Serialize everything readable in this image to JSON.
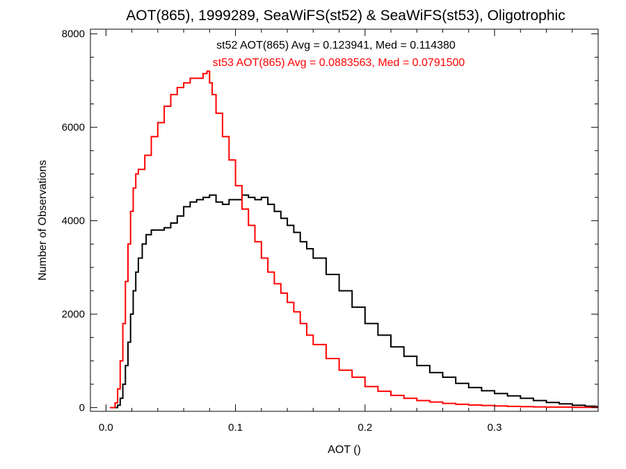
{
  "chart_data": {
    "type": "line",
    "title": "AOT(865), 1999289, SeaWiFS(st52) & SeaWiFS(st53), Oligotrophic",
    "xlabel": "AOT ()",
    "ylabel": "Number of Observations",
    "xlim": [
      -0.012,
      0.38
    ],
    "ylim": [
      -80,
      8100
    ],
    "x_ticks": [
      0.0,
      0.1,
      0.2,
      0.3
    ],
    "x_tick_labels": [
      "0.0",
      "0.1",
      "0.2",
      "0.3"
    ],
    "y_ticks": [
      0,
      2000,
      4000,
      6000,
      8000
    ],
    "y_tick_labels": [
      "0",
      "2000",
      "4000",
      "6000",
      "8000"
    ],
    "grid": false,
    "step": true,
    "annotations": [
      {
        "text": "st52 AOT(865) Avg = 0.123941, Med = 0.114380",
        "color": "#000000"
      },
      {
        "text": "st53 AOT(865) Avg = 0.0883563, Med = 0.0791500",
        "color": "#ff0000"
      }
    ],
    "series": [
      {
        "color": "#000000",
        "x": [
          0.005,
          0.007,
          0.009,
          0.011,
          0.013,
          0.015,
          0.017,
          0.019,
          0.021,
          0.023,
          0.025,
          0.028,
          0.031,
          0.035,
          0.04,
          0.045,
          0.05,
          0.055,
          0.06,
          0.065,
          0.07,
          0.075,
          0.08,
          0.085,
          0.09,
          0.095,
          0.1,
          0.105,
          0.11,
          0.115,
          0.12,
          0.125,
          0.13,
          0.135,
          0.14,
          0.145,
          0.15,
          0.155,
          0.16,
          0.17,
          0.18,
          0.19,
          0.2,
          0.21,
          0.22,
          0.23,
          0.24,
          0.25,
          0.26,
          0.27,
          0.28,
          0.29,
          0.3,
          0.31,
          0.32,
          0.33,
          0.34,
          0.35,
          0.36,
          0.37,
          0.378
        ],
        "y": [
          0,
          0,
          50,
          200,
          500,
          900,
          1400,
          2000,
          2500,
          2900,
          3200,
          3500,
          3700,
          3800,
          3800,
          3850,
          3950,
          4100,
          4300,
          4400,
          4450,
          4500,
          4550,
          4400,
          4350,
          4450,
          4450,
          4550,
          4500,
          4450,
          4500,
          4350,
          4200,
          4050,
          3900,
          3750,
          3550,
          3400,
          3200,
          2850,
          2500,
          2150,
          1800,
          1550,
          1300,
          1100,
          900,
          750,
          650,
          520,
          430,
          360,
          300,
          250,
          200,
          150,
          110,
          80,
          50,
          30,
          20
        ]
      },
      {
        "color": "#ff0000",
        "x": [
          0.003,
          0.005,
          0.007,
          0.009,
          0.011,
          0.013,
          0.015,
          0.017,
          0.019,
          0.021,
          0.023,
          0.025,
          0.03,
          0.035,
          0.04,
          0.045,
          0.05,
          0.055,
          0.06,
          0.065,
          0.07,
          0.075,
          0.078,
          0.08,
          0.082,
          0.085,
          0.09,
          0.095,
          0.1,
          0.105,
          0.11,
          0.115,
          0.12,
          0.125,
          0.13,
          0.135,
          0.14,
          0.145,
          0.15,
          0.155,
          0.16,
          0.17,
          0.18,
          0.19,
          0.2,
          0.21,
          0.22,
          0.23,
          0.24,
          0.25,
          0.26,
          0.27,
          0.28,
          0.29,
          0.3,
          0.31,
          0.32,
          0.33,
          0.34,
          0.36,
          0.378
        ],
        "y": [
          0,
          0,
          100,
          400,
          1000,
          1800,
          2700,
          3500,
          4200,
          4700,
          5000,
          5100,
          5400,
          5800,
          6100,
          6450,
          6700,
          6850,
          6950,
          7050,
          7050,
          7150,
          7200,
          6950,
          6700,
          6300,
          5800,
          5300,
          4750,
          4250,
          3900,
          3550,
          3200,
          2900,
          2650,
          2450,
          2250,
          2050,
          1800,
          1550,
          1350,
          1050,
          800,
          650,
          450,
          350,
          260,
          200,
          150,
          120,
          90,
          70,
          55,
          45,
          35,
          25,
          20,
          15,
          10,
          5,
          5
        ]
      }
    ]
  }
}
